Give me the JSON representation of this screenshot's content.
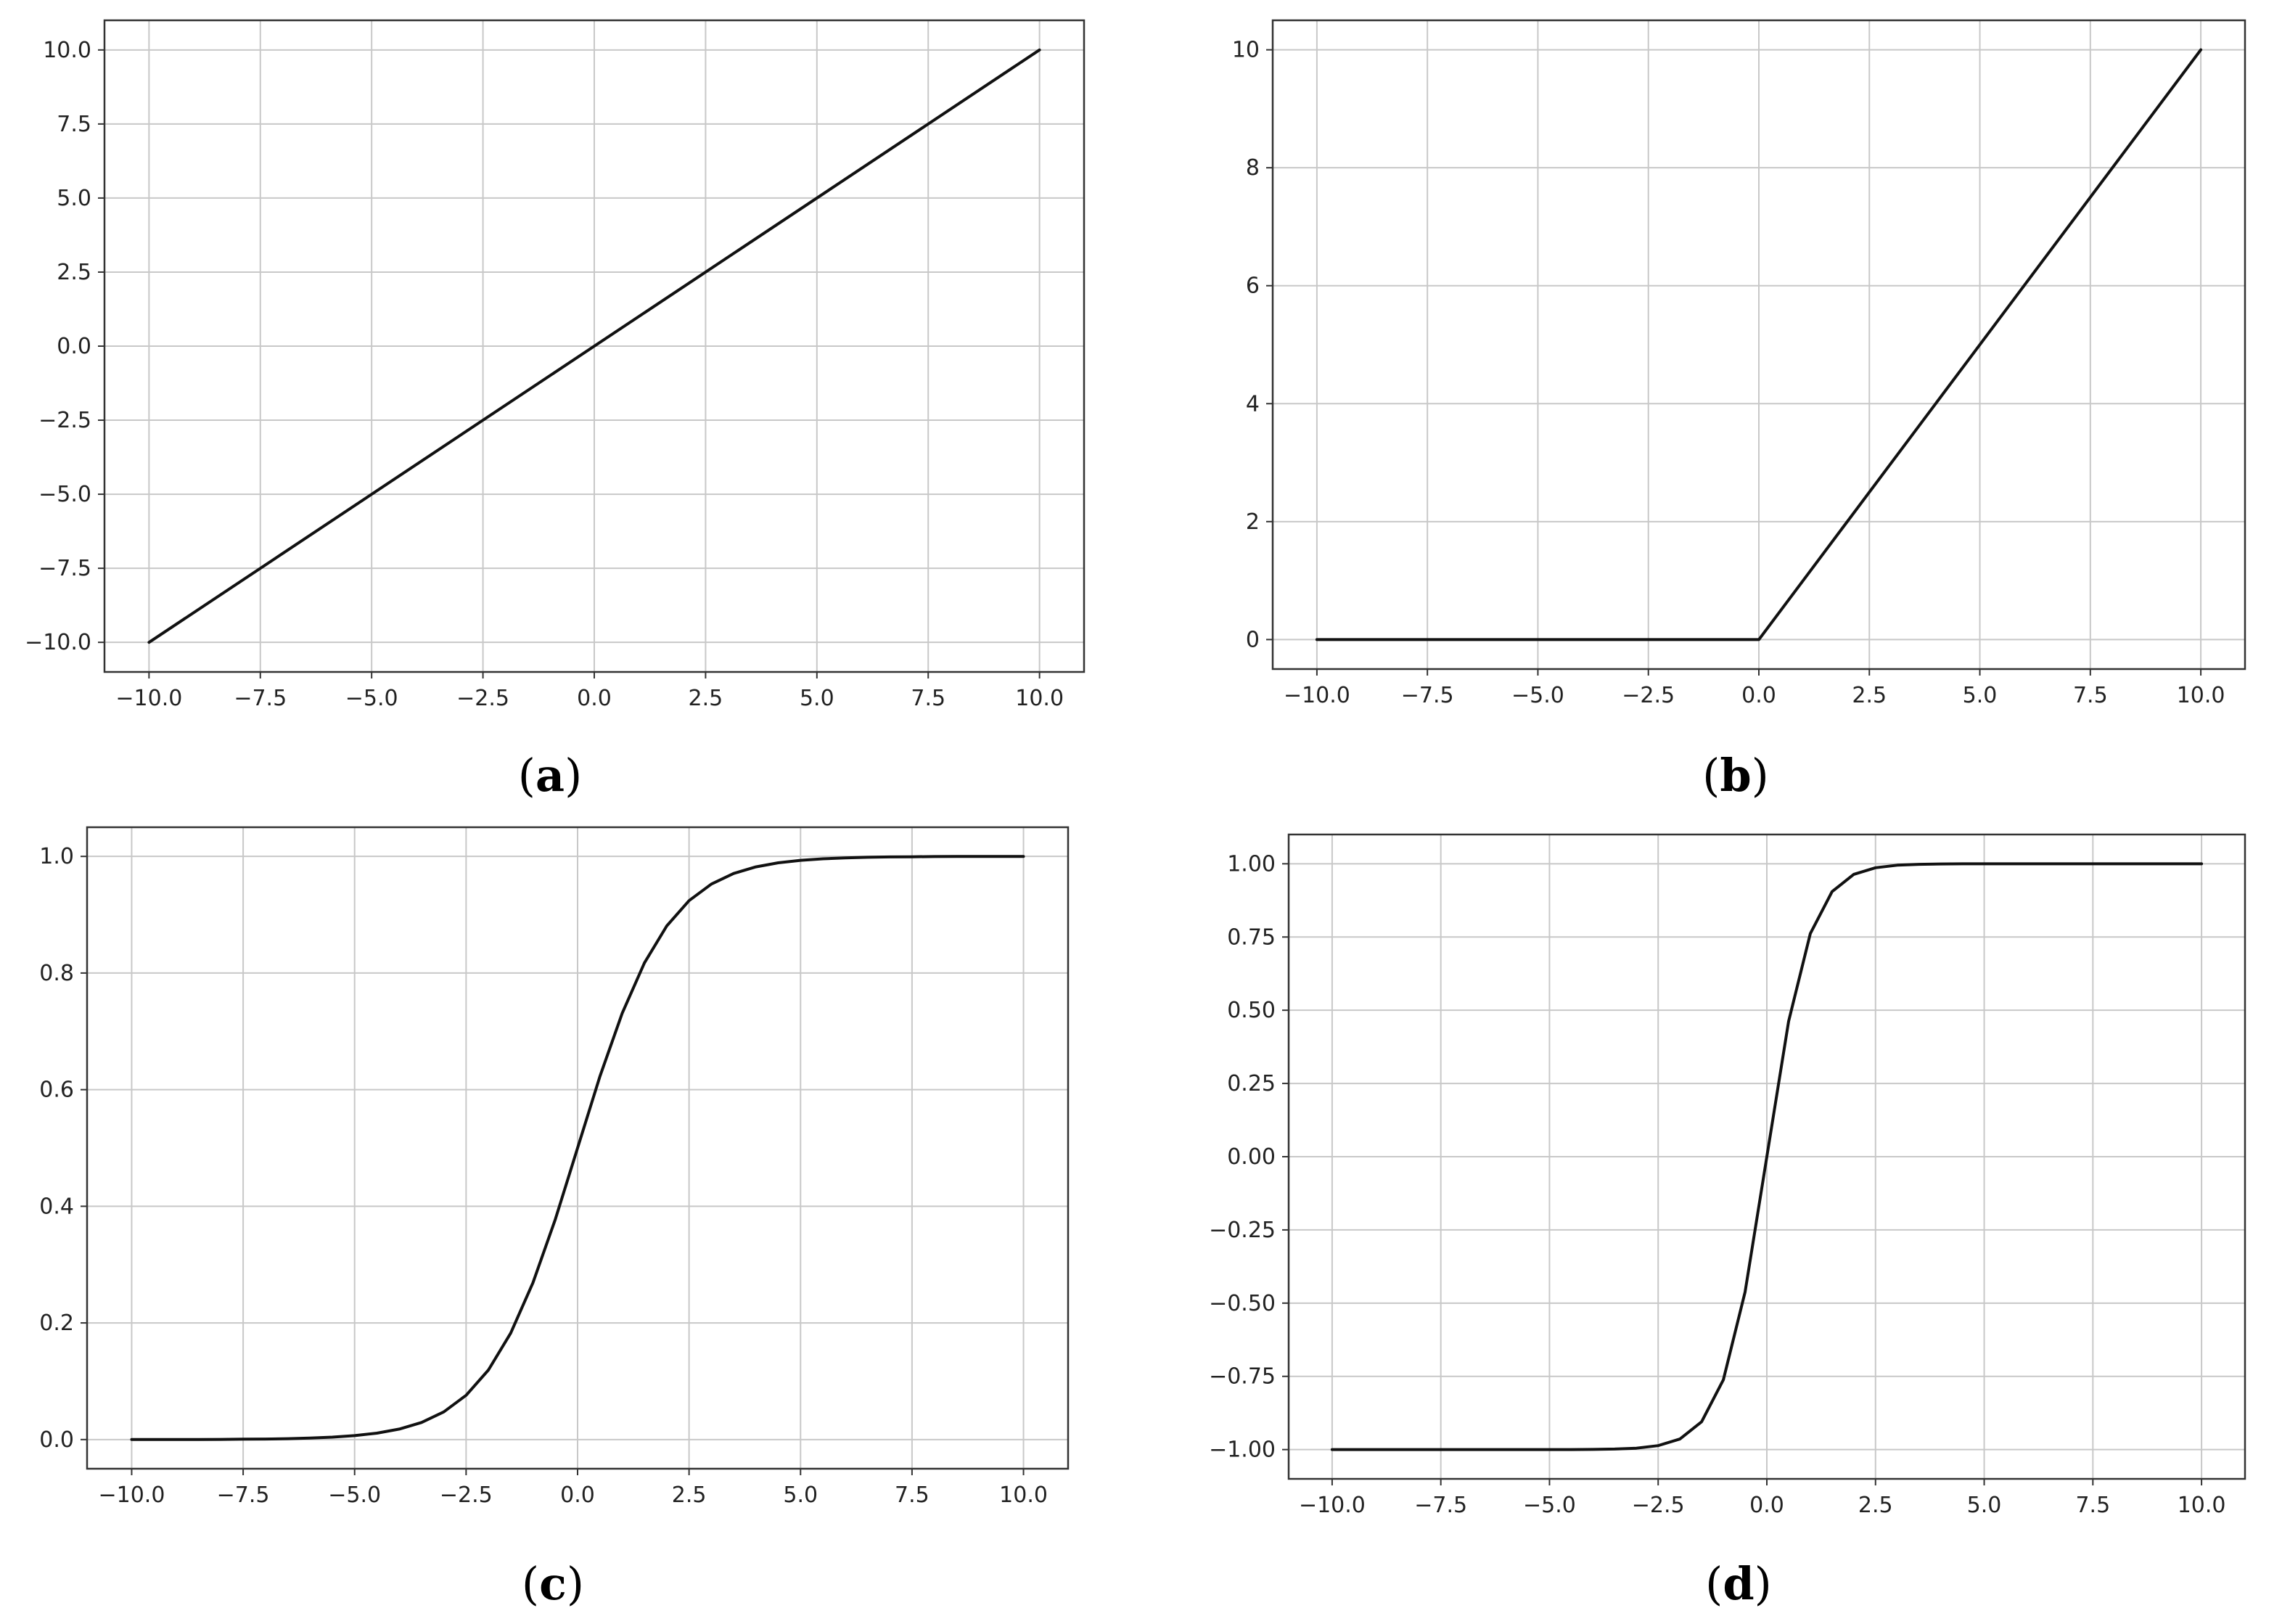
{
  "chart_data": [
    {
      "panel": "(a)",
      "panel_parts": [
        "(",
        "a",
        ")"
      ],
      "type": "line",
      "xlim": [
        -11.0,
        11.0
      ],
      "ylim": [
        -11.0,
        11.0
      ],
      "xticks": [
        -10.0,
        -7.5,
        -5.0,
        -2.5,
        0.0,
        2.5,
        5.0,
        7.5,
        10.0
      ],
      "xtick_labels": [
        "−10.0",
        "−7.5",
        "−5.0",
        "−2.5",
        "0.0",
        "2.5",
        "5.0",
        "7.5",
        "10.0"
      ],
      "yticks": [
        10.0,
        7.5,
        5.0,
        2.5,
        0.0,
        -2.5,
        -5.0,
        -7.5,
        -10.0
      ],
      "ytick_labels": [
        "10.0",
        "7.5",
        "5.0",
        "2.5",
        "0.0",
        "−2.5",
        "−5.0",
        "−7.5",
        "−10.0"
      ],
      "grid": true,
      "series": [
        {
          "color": "#111111",
          "x": [
            -10,
            10
          ],
          "y": [
            -10,
            10
          ]
        }
      ]
    },
    {
      "panel": "(b)",
      "panel_parts": [
        "(",
        "b",
        ")"
      ],
      "type": "line",
      "xlim": [
        -11.0,
        11.0
      ],
      "ylim": [
        -0.5,
        10.5
      ],
      "xticks": [
        -10.0,
        -7.5,
        -5.0,
        -2.5,
        0.0,
        2.5,
        5.0,
        7.5,
        10.0
      ],
      "xtick_labels": [
        "−10.0",
        "−7.5",
        "−5.0",
        "−2.5",
        "0.0",
        "2.5",
        "5.0",
        "7.5",
        "10.0"
      ],
      "yticks": [
        10,
        8,
        6,
        4,
        2,
        0
      ],
      "ytick_labels": [
        "10",
        "8",
        "6",
        "4",
        "2",
        "0"
      ],
      "grid": true,
      "series": [
        {
          "color": "#111111",
          "x": [
            -10,
            0,
            10
          ],
          "y": [
            0,
            0,
            10
          ]
        }
      ]
    },
    {
      "panel": "(c)",
      "panel_parts": [
        "(",
        "c",
        ")"
      ],
      "type": "line",
      "xlim": [
        -11.0,
        11.0
      ],
      "ylim": [
        -0.05,
        1.05
      ],
      "xticks": [
        -10.0,
        -7.5,
        -5.0,
        -2.5,
        0.0,
        2.5,
        5.0,
        7.5,
        10.0
      ],
      "xtick_labels": [
        "−10.0",
        "−7.5",
        "−5.0",
        "−2.5",
        "0.0",
        "2.5",
        "5.0",
        "7.5",
        "10.0"
      ],
      "yticks": [
        1.0,
        0.8,
        0.6,
        0.4,
        0.2,
        0.0
      ],
      "ytick_labels": [
        "1.0",
        "0.8",
        "0.6",
        "0.4",
        "0.2",
        "0.0"
      ],
      "grid": true,
      "series": [
        {
          "color": "#111111",
          "x": [
            -10,
            -9.5,
            -9,
            -8.5,
            -8,
            -7.5,
            -7,
            -6.5,
            -6,
            -5.5,
            -5,
            -4.5,
            -4,
            -3.5,
            -3,
            -2.5,
            -2,
            -1.5,
            -1,
            -0.5,
            0,
            0.5,
            1,
            1.5,
            2,
            2.5,
            3,
            3.5,
            4,
            4.5,
            5,
            5.5,
            6,
            6.5,
            7,
            7.5,
            8,
            8.5,
            9,
            9.5,
            10
          ],
          "y": [
            0.0,
            0.0001,
            0.0001,
            0.0002,
            0.0003,
            0.0006,
            0.0009,
            0.0015,
            0.0025,
            0.0041,
            0.0067,
            0.011,
            0.018,
            0.0293,
            0.0474,
            0.0759,
            0.1192,
            0.1824,
            0.2689,
            0.3775,
            0.5,
            0.6225,
            0.7311,
            0.8176,
            0.8808,
            0.9241,
            0.9526,
            0.9707,
            0.982,
            0.989,
            0.9933,
            0.9959,
            0.9975,
            0.9985,
            0.9991,
            0.9994,
            0.9997,
            0.9998,
            0.9999,
            0.9999,
            1.0
          ]
        }
      ]
    },
    {
      "panel": "(d)",
      "panel_parts": [
        "(",
        "d",
        ")"
      ],
      "type": "line",
      "xlim": [
        -11.0,
        11.0
      ],
      "ylim": [
        -1.1,
        1.1
      ],
      "xticks": [
        -10.0,
        -7.5,
        -5.0,
        -2.5,
        0.0,
        2.5,
        5.0,
        7.5,
        10.0
      ],
      "xtick_labels": [
        "−10.0",
        "−7.5",
        "−5.0",
        "−2.5",
        "0.0",
        "2.5",
        "5.0",
        "7.5",
        "10.0"
      ],
      "yticks": [
        1.0,
        0.75,
        0.5,
        0.25,
        0.0,
        -0.25,
        -0.5,
        -0.75,
        -1.0
      ],
      "ytick_labels": [
        "1.00",
        "0.75",
        "0.50",
        "0.25",
        "0.00",
        "−0.25",
        "−0.50",
        "−0.75",
        "−1.00"
      ],
      "grid": true,
      "series": [
        {
          "color": "#111111",
          "x": [
            -10,
            -9.5,
            -9,
            -8.5,
            -8,
            -7.5,
            -7,
            -6.5,
            -6,
            -5.5,
            -5,
            -4.5,
            -4,
            -3.5,
            -3,
            -2.5,
            -2,
            -1.5,
            -1,
            -0.5,
            0,
            0.5,
            1,
            1.5,
            2,
            2.5,
            3,
            3.5,
            4,
            4.5,
            5,
            5.5,
            6,
            6.5,
            7,
            7.5,
            8,
            8.5,
            9,
            9.5,
            10
          ],
          "y": [
            -1.0,
            -1.0,
            -1.0,
            -1.0,
            -1.0,
            -1.0,
            -1.0,
            -1.0,
            -1.0,
            -1.0,
            -0.9999,
            -0.9998,
            -0.9993,
            -0.9982,
            -0.9951,
            -0.9866,
            -0.964,
            -0.9051,
            -0.7616,
            -0.4621,
            0.0,
            0.4621,
            0.7616,
            0.9051,
            0.964,
            0.9866,
            0.9951,
            0.9982,
            0.9993,
            0.9998,
            0.9999,
            1.0,
            1.0,
            1.0,
            1.0,
            1.0,
            1.0,
            1.0,
            1.0,
            1.0,
            1.0
          ]
        }
      ]
    }
  ]
}
